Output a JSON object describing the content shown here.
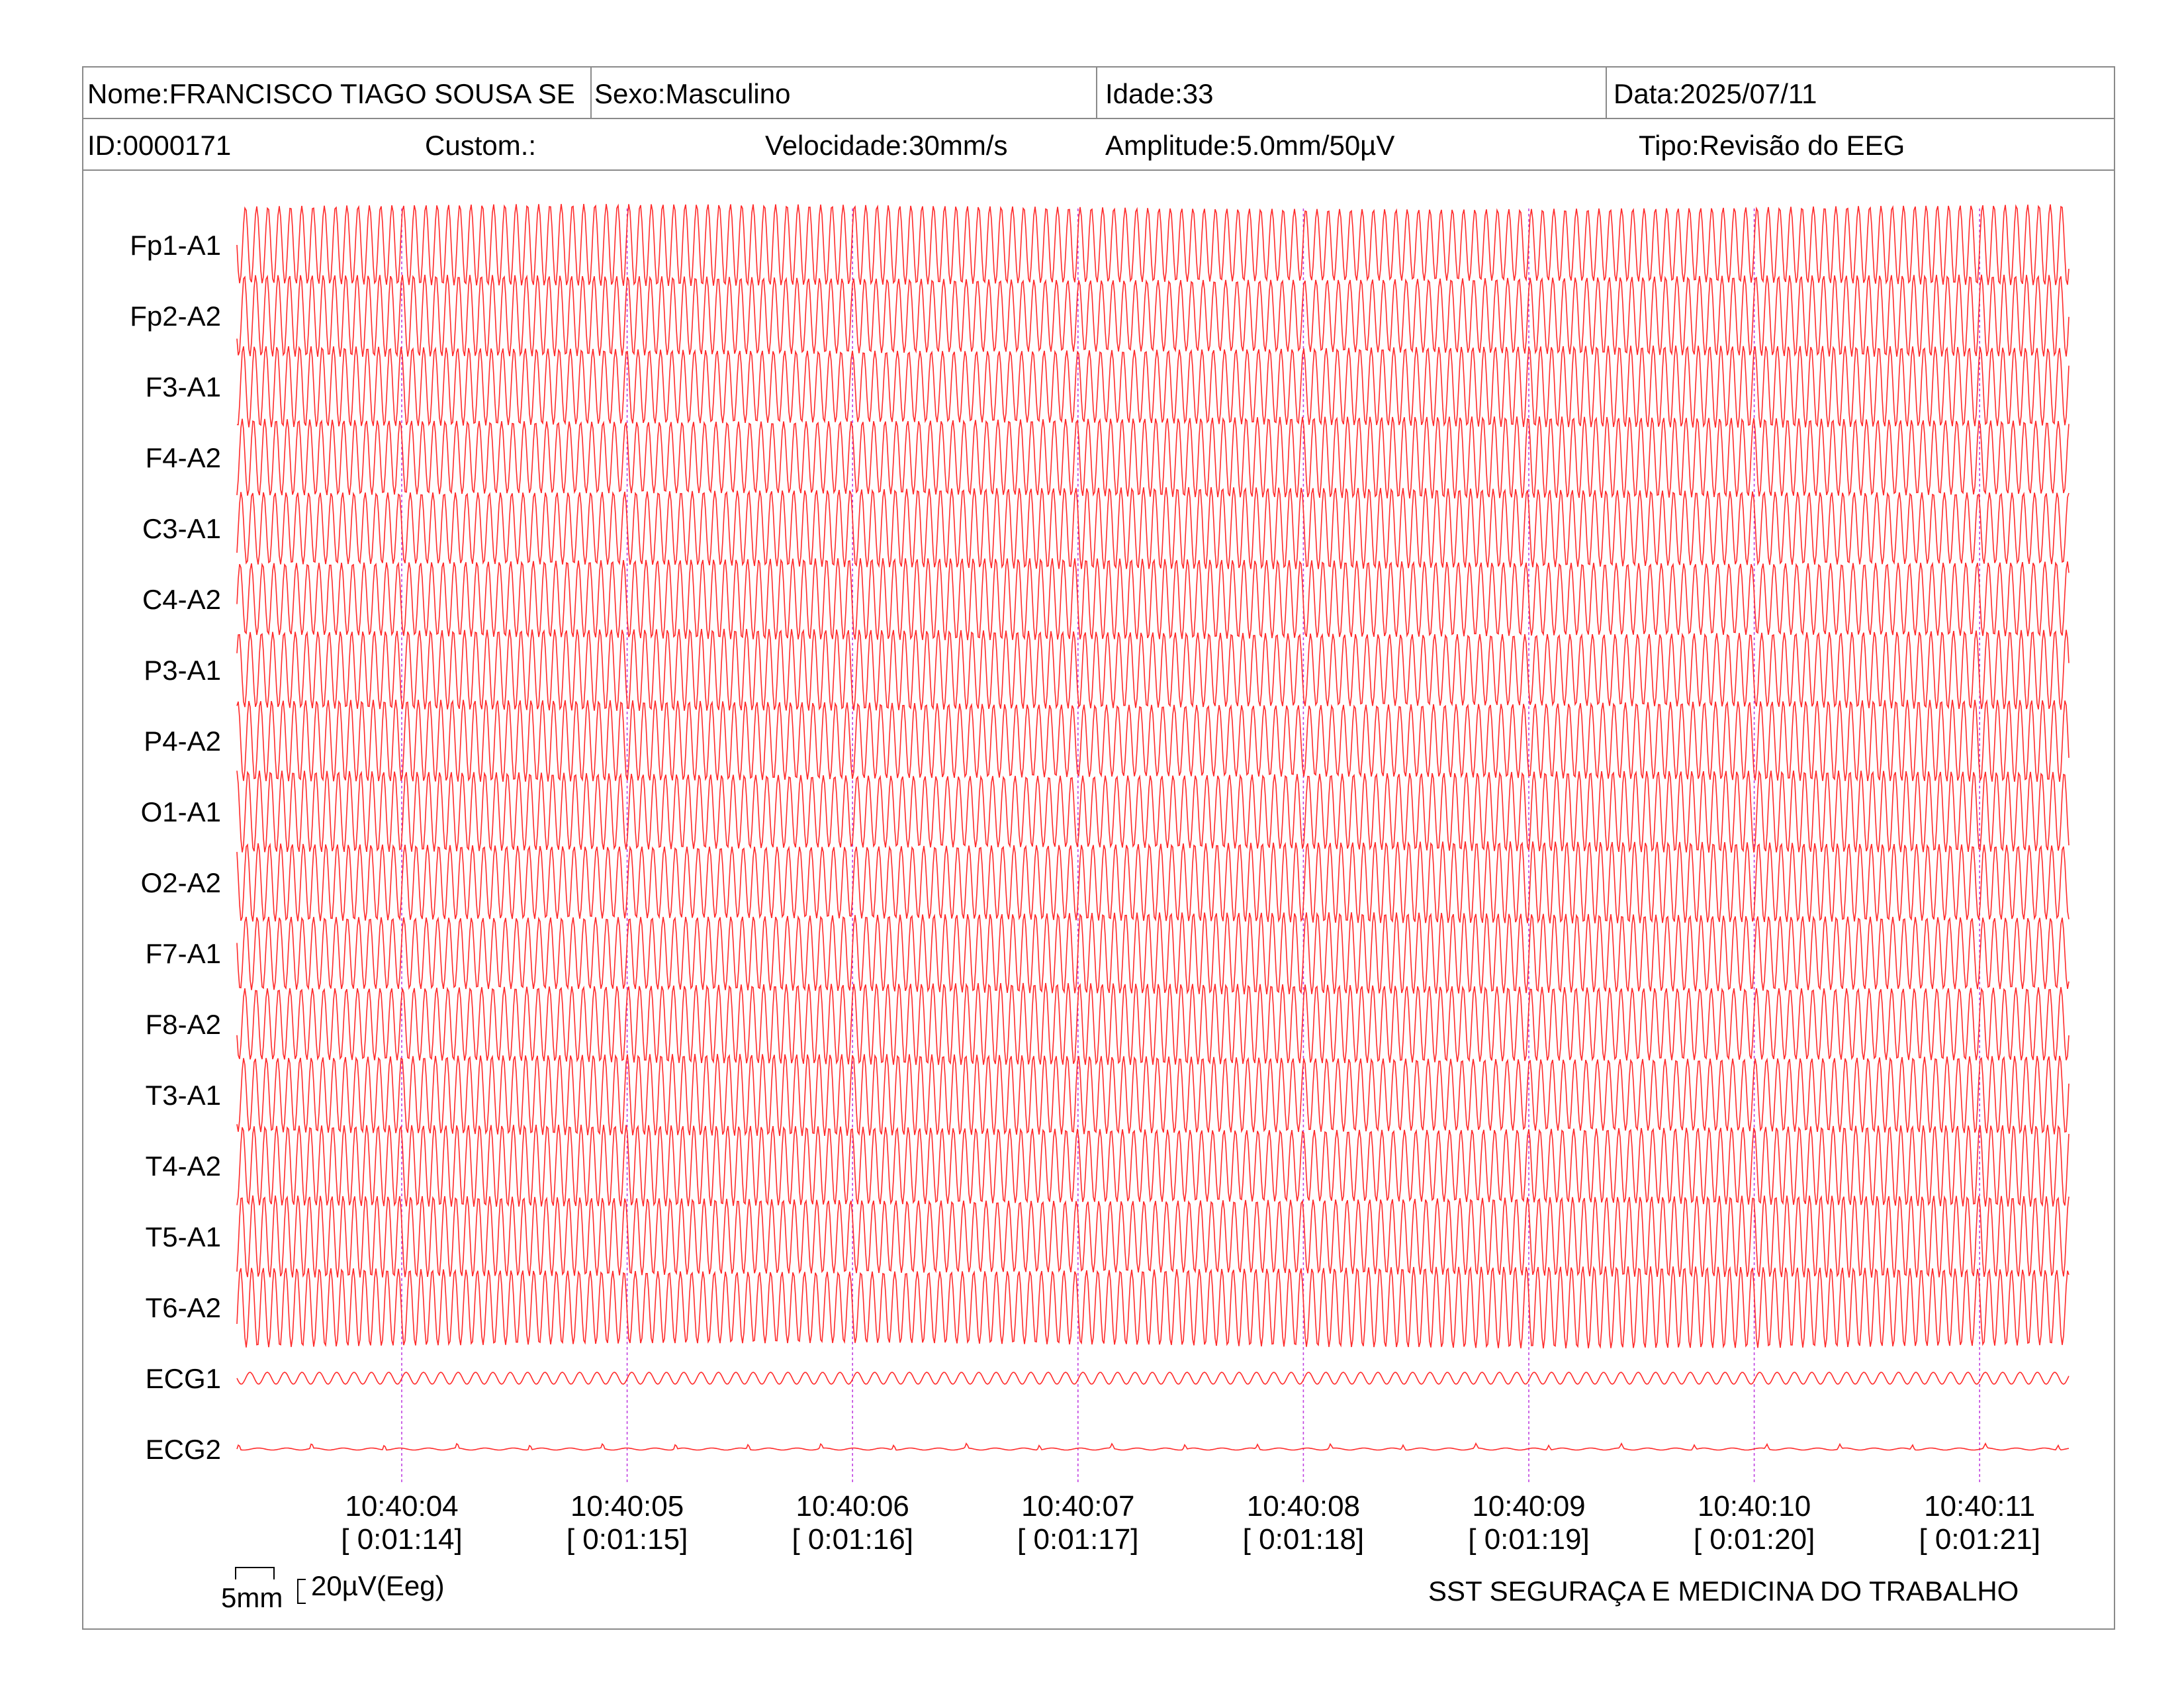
{
  "header": {
    "name": "Nome:FRANCISCO TIAGO SOUSA SE",
    "sex": "Sexo:Masculino",
    "age": "Idade:33",
    "date": "Data:2025/07/11",
    "id": "ID:0000171",
    "custom": "Custom.:",
    "speed": "Velocidade:30mm/s",
    "amplitude": "Amplitude:5.0mm/50µV",
    "type": "Tipo:Revisão do EEG"
  },
  "scale": {
    "horizontal_label": "5mm",
    "vertical_label": "20µV(Eeg)"
  },
  "footer": {
    "company": "SST SEGURAÇA E MEDICINA DO TRABALHO"
  },
  "colors": {
    "trace": "#ff2a2a",
    "marker": "#c040e0",
    "border": "#8a8a8a"
  },
  "chart_data": {
    "type": "line",
    "channels": [
      "Fp1-A1",
      "Fp2-A2",
      "F3-A1",
      "F4-A2",
      "C3-A1",
      "C4-A2",
      "P3-A1",
      "P4-A2",
      "O1-A1",
      "O2-A2",
      "F7-A1",
      "F8-A2",
      "T3-A1",
      "T4-A2",
      "T5-A1",
      "T6-A2",
      "ECG1",
      "ECG2"
    ],
    "time_marks": [
      {
        "clock": "10:40:04",
        "elapsed": "[ 0:01:14]"
      },
      {
        "clock": "10:40:05",
        "elapsed": "[ 0:01:15]"
      },
      {
        "clock": "10:40:06",
        "elapsed": "[ 0:01:16]"
      },
      {
        "clock": "10:40:07",
        "elapsed": "[ 0:01:17]"
      },
      {
        "clock": "10:40:08",
        "elapsed": "[ 0:01:18]"
      },
      {
        "clock": "10:40:09",
        "elapsed": "[ 0:01:19]"
      },
      {
        "clock": "10:40:10",
        "elapsed": "[ 0:01:20]"
      },
      {
        "clock": "10:40:11",
        "elapsed": "[ 0:01:21]"
      }
    ],
    "eeg_frequency_hz": 20,
    "ecg1_frequency_hz": 13,
    "seconds_before_first_mark": 0.73,
    "seconds_after_last_mark": 0.39
  }
}
